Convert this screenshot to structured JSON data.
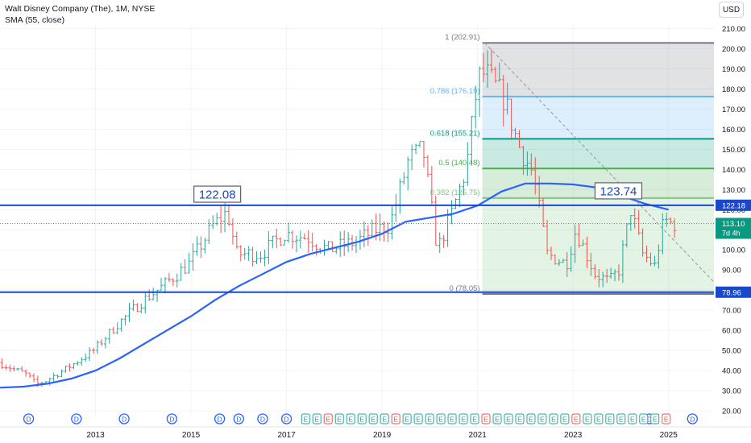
{
  "header": {
    "title": "Walt Disney Company (The), 1M, NYSE",
    "indicator": "SMA (55, close)",
    "currency_button": "USD"
  },
  "colors": {
    "up": "#26a69a",
    "down": "#ef5350",
    "sma": "#2962ff",
    "level_line": "#1848cc",
    "fib_1": "#787b86",
    "fib_0786": "#64b5f6",
    "fib_0618": "#089981",
    "fib_05": "#4caf50",
    "fib_0382": "#81c784",
    "fib_0": "#787b86",
    "dividend": "#2962ff",
    "earnings": "#26a69a",
    "earnings_miss": "#ef5350"
  },
  "chart_data": {
    "type": "candlestick",
    "symbol": "Walt Disney Company (The)",
    "interval": "1M",
    "exchange": "NYSE",
    "ylim": [
      20,
      210
    ],
    "y_ticks": [
      20,
      30,
      40,
      50,
      60,
      70,
      80,
      90,
      100,
      110,
      120,
      130,
      140,
      150,
      160,
      170,
      180,
      190,
      200,
      210
    ],
    "y_tick_labels": [
      "20.00",
      "30.00",
      "40.00",
      "50.00",
      "60.00",
      "70.00",
      "80.00",
      "90.00",
      "100.00",
      "110.00",
      "120.00",
      "130.00",
      "140.00",
      "150.00",
      "160.00",
      "170.00",
      "180.00",
      "190.00",
      "200.00",
      "210.00"
    ],
    "x_range": [
      2011.0,
      2025.95
    ],
    "x_ticks": [
      2013,
      2015,
      2017,
      2019,
      2021,
      2023,
      2025
    ],
    "x_tick_labels": [
      "2013",
      "2015",
      "2017",
      "2019",
      "2021",
      "2023",
      "2025"
    ],
    "price_anchors": [
      [
        2011.0,
        44
      ],
      [
        2011.6,
        38
      ],
      [
        2011.8,
        33
      ],
      [
        2012.0,
        35
      ],
      [
        2012.5,
        42
      ],
      [
        2013.0,
        50
      ],
      [
        2013.5,
        63
      ],
      [
        2014.0,
        74
      ],
      [
        2014.5,
        83
      ],
      [
        2015.0,
        93
      ],
      [
        2015.5,
        112
      ],
      [
        2015.8,
        119
      ],
      [
        2016.0,
        98
      ],
      [
        2016.5,
        98
      ],
      [
        2017.0,
        108
      ],
      [
        2017.5,
        106
      ],
      [
        2017.9,
        100
      ],
      [
        2018.5,
        104
      ],
      [
        2018.9,
        110
      ],
      [
        2019.2,
        112
      ],
      [
        2019.6,
        145
      ],
      [
        2019.9,
        150
      ],
      [
        2020.2,
        100
      ],
      [
        2020.5,
        118
      ],
      [
        2020.8,
        140
      ],
      [
        2021.05,
        185
      ],
      [
        2021.2,
        188
      ],
      [
        2021.6,
        175
      ],
      [
        2021.9,
        152
      ],
      [
        2022.2,
        138
      ],
      [
        2022.5,
        98
      ],
      [
        2022.9,
        93
      ],
      [
        2023.1,
        110
      ],
      [
        2023.5,
        88
      ],
      [
        2023.8,
        84
      ],
      [
        2024.0,
        90
      ],
      [
        2024.25,
        120
      ],
      [
        2024.5,
        98
      ],
      [
        2024.75,
        92
      ],
      [
        2024.95,
        115
      ],
      [
        2025.1,
        113
      ]
    ],
    "sma": {
      "name": "SMA (55, close)",
      "points": [
        [
          2011.0,
          31.5
        ],
        [
          2011.5,
          32
        ],
        [
          2012.0,
          33.5
        ],
        [
          2012.5,
          36
        ],
        [
          2013.0,
          40
        ],
        [
          2013.5,
          46
        ],
        [
          2014.0,
          53
        ],
        [
          2014.5,
          60
        ],
        [
          2015.0,
          67
        ],
        [
          2015.5,
          75
        ],
        [
          2016.0,
          82
        ],
        [
          2016.5,
          88
        ],
        [
          2017.0,
          94
        ],
        [
          2017.5,
          98
        ],
        [
          2018.0,
          101
        ],
        [
          2018.5,
          104
        ],
        [
          2019.0,
          108
        ],
        [
          2019.5,
          114
        ],
        [
          2020.0,
          116
        ],
        [
          2020.5,
          118
        ],
        [
          2021.0,
          122
        ],
        [
          2021.5,
          129
        ],
        [
          2022.0,
          133
        ],
        [
          2022.5,
          133
        ],
        [
          2023.0,
          132.5
        ],
        [
          2023.5,
          131
        ],
        [
          2024.0,
          127
        ],
        [
          2024.5,
          123
        ],
        [
          2025.0,
          120
        ]
      ]
    },
    "horizontal_levels": [
      {
        "value": 122.18,
        "label": "122.18"
      },
      {
        "value": 78.96,
        "label": "78.96"
      }
    ],
    "callouts": [
      {
        "text": "122.08",
        "x": 2015.55,
        "value": 122.08
      },
      {
        "text": "123.74",
        "x": 2023.95,
        "value": 123.74
      }
    ],
    "current_price": {
      "value": 113.1,
      "label": "113.10",
      "countdown": "7d 4h"
    },
    "fibonacci": {
      "x_start": 2021.1,
      "x_end": 2025.95,
      "levels": [
        {
          "ratio": 1,
          "value": 202.91,
          "label": "1 (202.91)"
        },
        {
          "ratio": 0.786,
          "value": 176.19,
          "label": "0.786 (176.19)"
        },
        {
          "ratio": 0.618,
          "value": 155.21,
          "label": "0.618 (155.21)"
        },
        {
          "ratio": 0.5,
          "value": 140.48,
          "label": "0.5 (140.48)"
        },
        {
          "ratio": 0.382,
          "value": 125.75,
          "label": "0.382 (125.75)"
        },
        {
          "ratio": 0,
          "value": 78.05,
          "label": "0 (78.05)"
        }
      ]
    },
    "trendline": {
      "from": [
        2021.15,
        202.91
      ],
      "to": [
        2025.95,
        84
      ]
    },
    "events": {
      "dividend_label": "D",
      "earnings_label": "E",
      "dividends": [
        2011.6,
        2012.6,
        2013.6,
        2014.6,
        2015.6,
        2016.0,
        2016.5,
        2017.0,
        2024.6,
        2025.5
      ],
      "earnings_start": 2017.4,
      "earnings_end": 2024.95,
      "earnings_count": 33,
      "earnings_miss_index": [
        2,
        8,
        16,
        24,
        32
      ]
    }
  }
}
